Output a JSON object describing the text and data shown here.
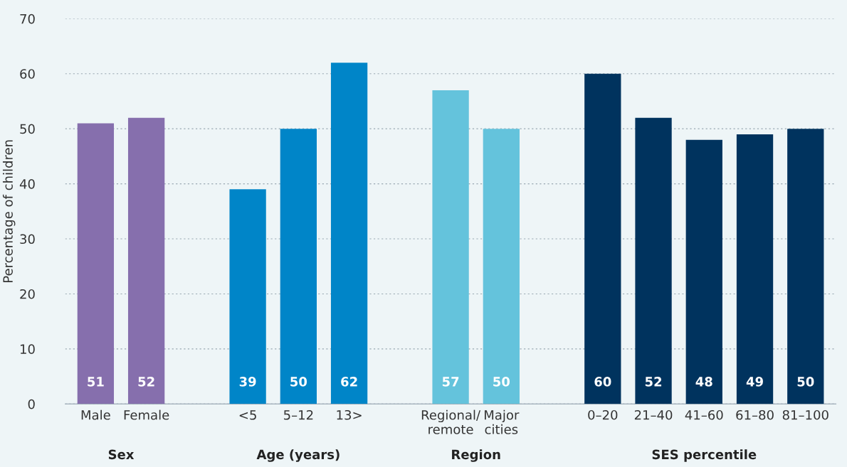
{
  "chart_data": {
    "type": "bar",
    "ylabel": "Percentage of children",
    "categories": [
      "Male",
      "Female",
      null,
      "<5",
      "5–12",
      "13>",
      null,
      "Regional/\nremote",
      "Major\ncities",
      null,
      "0–20",
      "21–40",
      "41–60",
      "61–80",
      "81–100"
    ],
    "values": [
      51,
      52,
      null,
      39,
      50,
      62,
      null,
      57,
      50,
      null,
      60,
      52,
      48,
      49,
      50
    ],
    "colors": [
      "#866fad",
      "#866fad",
      "#ffffff",
      "#0085c8",
      "#0085c8",
      "#0085c8",
      "#ffffff",
      "#64c3dc",
      "#64c3dc",
      "#ffffff",
      "#00335e",
      "#00335e",
      "#00335e",
      "#00335e",
      "#00335e"
    ],
    "annotations": [
      "Sex",
      "Age (years)",
      "Region",
      "SES percentile"
    ],
    "ylim": [
      0,
      70
    ],
    "yticks": [
      0,
      10,
      20,
      30,
      40,
      50,
      60,
      70
    ],
    "grid": "y",
    "data_labels": true
  }
}
